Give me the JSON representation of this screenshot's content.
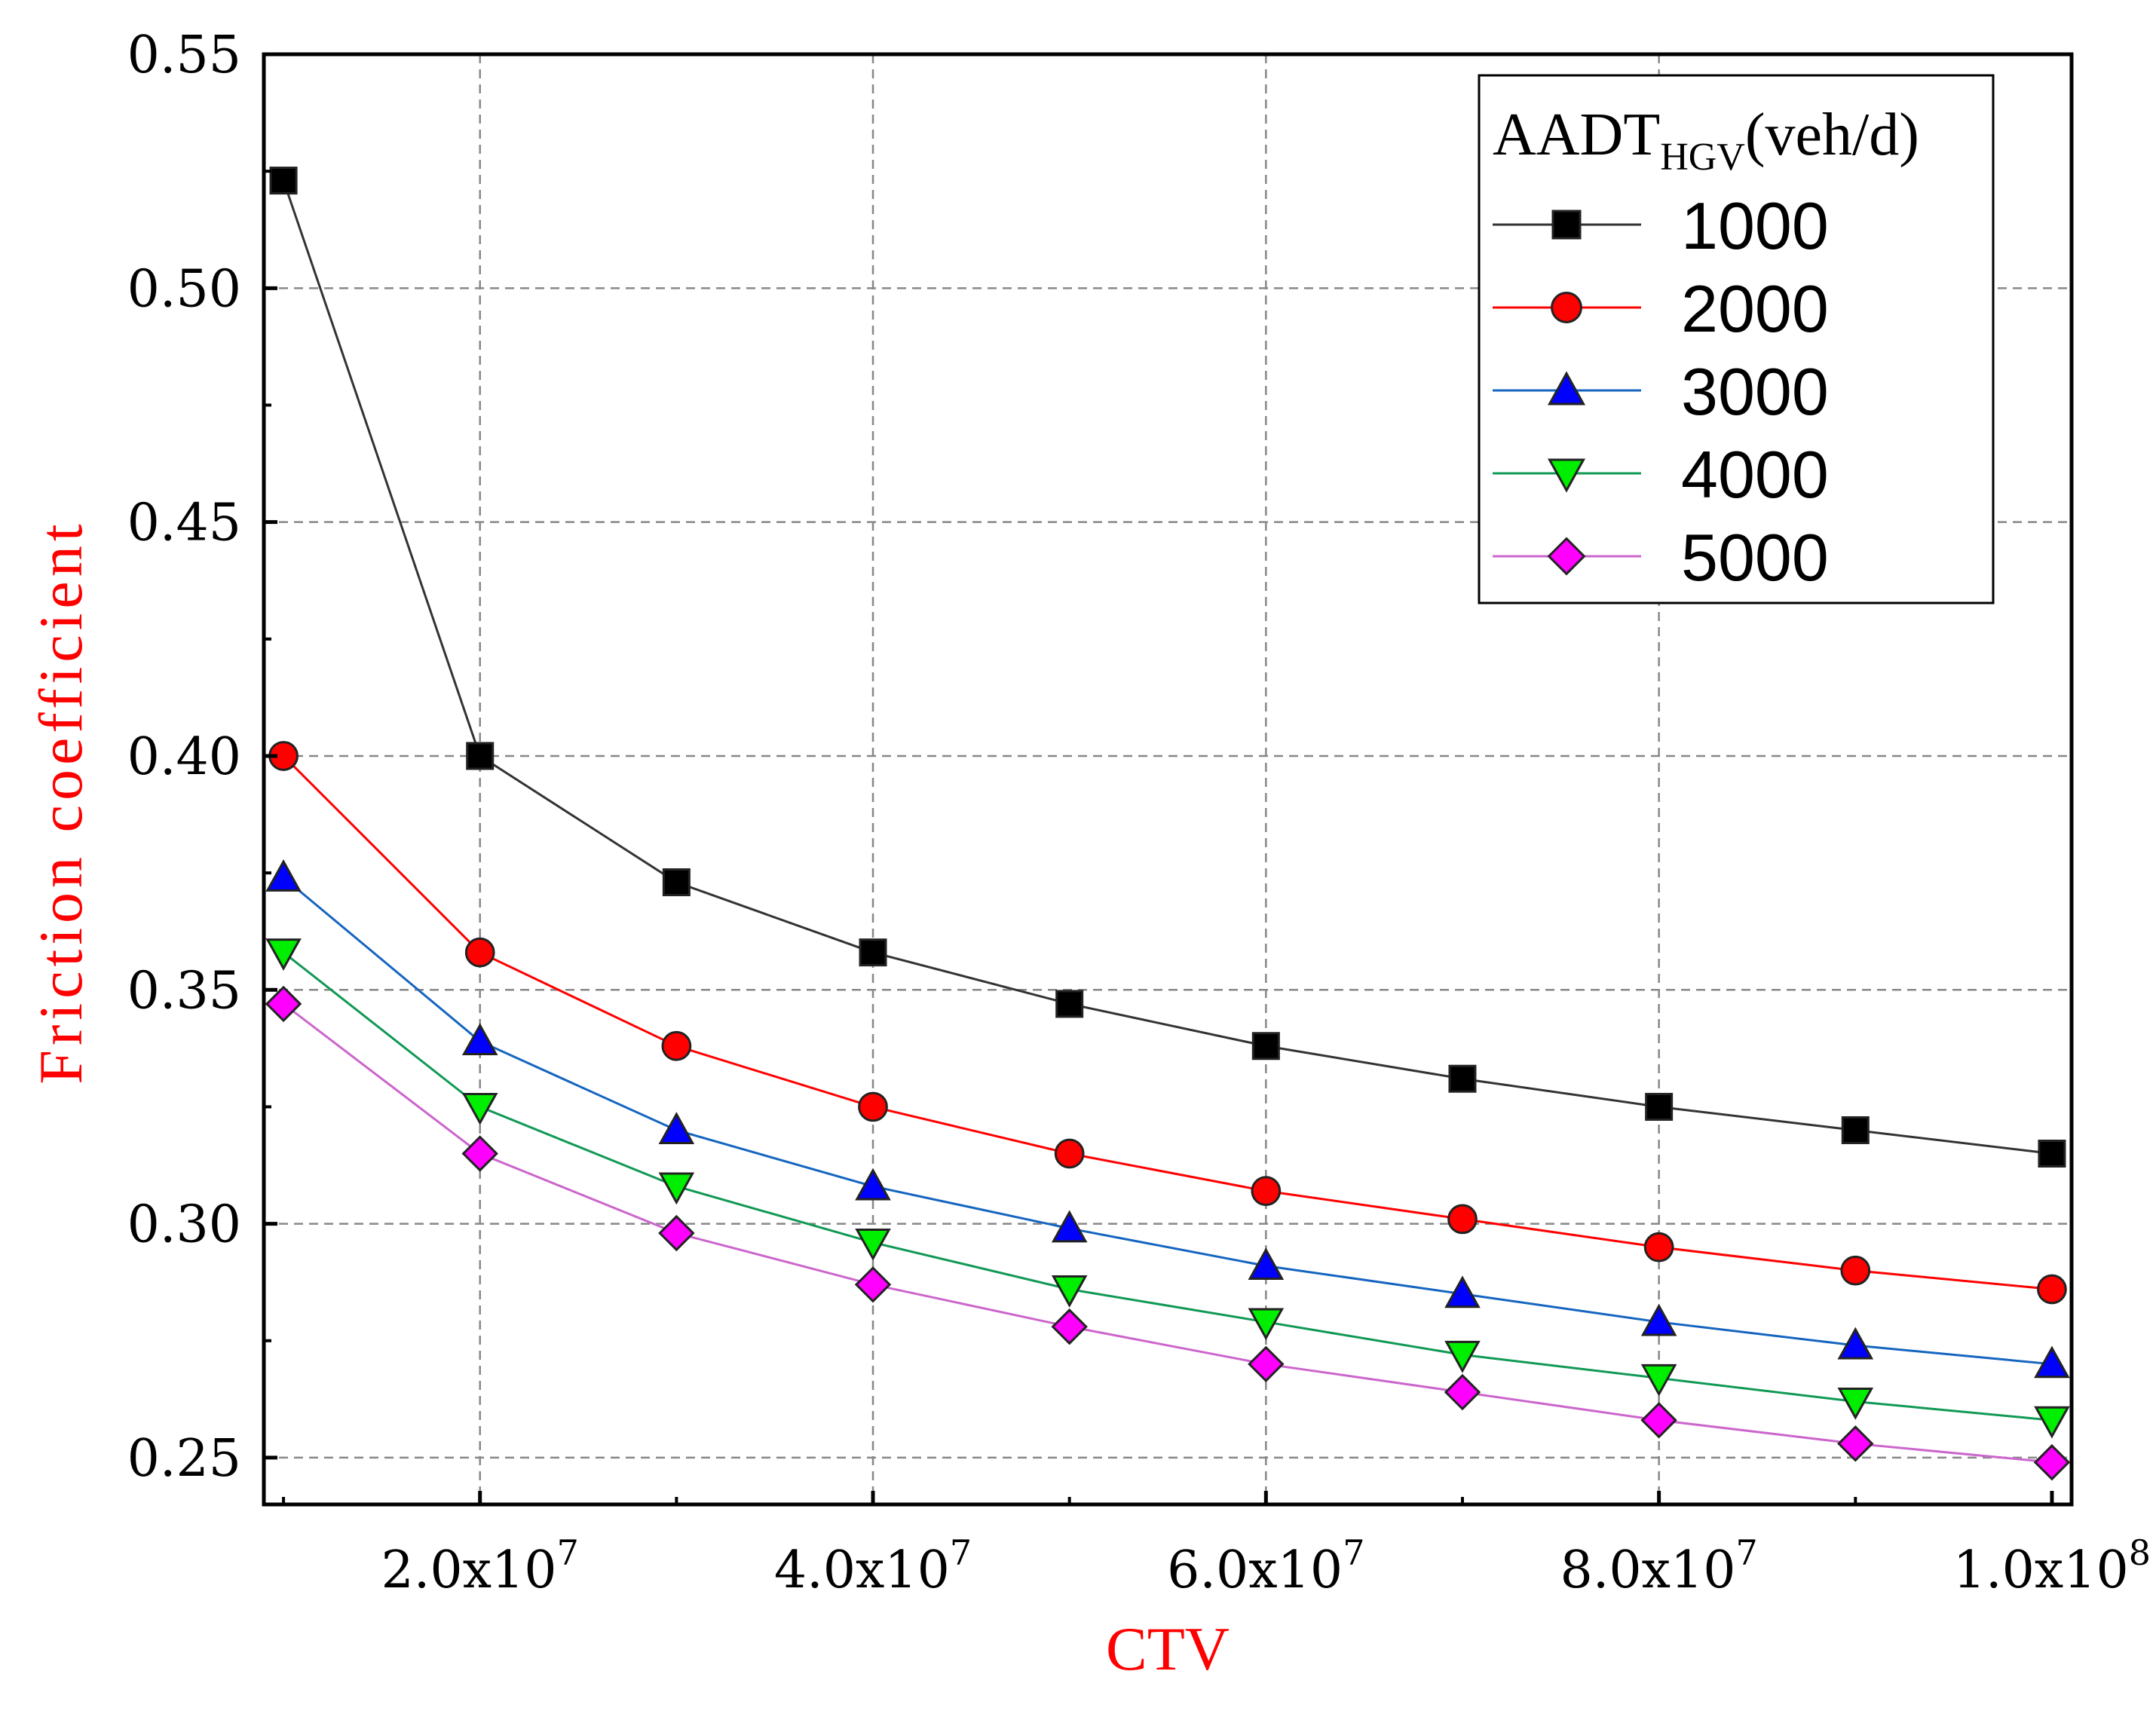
{
  "chart_data": {
    "type": "line",
    "xlabel": "CTV",
    "ylabel": "Friction coefficient",
    "xlim": [
      9000000,
      101000000
    ],
    "ylim": [
      0.24,
      0.55
    ],
    "x_ticks": [
      {
        "value": 20000000,
        "mantissa": "2.0x10",
        "exp": "7"
      },
      {
        "value": 40000000,
        "mantissa": "4.0x10",
        "exp": "7"
      },
      {
        "value": 60000000,
        "mantissa": "6.0x10",
        "exp": "7"
      },
      {
        "value": 80000000,
        "mantissa": "8.0x10",
        "exp": "7"
      },
      {
        "value": 100000000,
        "mantissa": "1.0x10",
        "exp": "8"
      }
    ],
    "y_ticks": [
      {
        "value": 0.25,
        "label": "0.25"
      },
      {
        "value": 0.3,
        "label": "0.30"
      },
      {
        "value": 0.35,
        "label": "0.35"
      },
      {
        "value": 0.4,
        "label": "0.40"
      },
      {
        "value": 0.45,
        "label": "0.45"
      },
      {
        "value": 0.5,
        "label": "0.50"
      },
      {
        "value": 0.55,
        "label": "0.55"
      }
    ],
    "grid": true,
    "legend": {
      "title_main": "AADT",
      "title_sub": "HGV",
      "title_suffix": "(veh/d)",
      "placement": "top-right"
    },
    "x": [
      10000000,
      20000000,
      30000000,
      40000000,
      50000000,
      60000000,
      70000000,
      80000000,
      90000000,
      100000000
    ],
    "series": [
      {
        "name": "1000",
        "color": "#000000",
        "line_color": "#333333",
        "marker": "square",
        "values": [
          0.523,
          0.4,
          0.373,
          0.358,
          0.347,
          0.338,
          0.331,
          0.325,
          0.32,
          0.315
        ]
      },
      {
        "name": "2000",
        "color": "#ff0000",
        "line_color": "#ff0000",
        "marker": "circle",
        "values": [
          0.4,
          0.358,
          0.338,
          0.325,
          0.315,
          0.307,
          0.301,
          0.295,
          0.29,
          0.286
        ]
      },
      {
        "name": "3000",
        "color": "#0000ff",
        "line_color": "#1565c0",
        "marker": "triangle-up",
        "values": [
          0.374,
          0.339,
          0.32,
          0.308,
          0.299,
          0.291,
          0.285,
          0.279,
          0.274,
          0.27
        ]
      },
      {
        "name": "4000",
        "color": "#00ee00",
        "line_color": "#119955",
        "marker": "triangle-down",
        "values": [
          0.358,
          0.325,
          0.308,
          0.296,
          0.286,
          0.279,
          0.272,
          0.267,
          0.262,
          0.258
        ]
      },
      {
        "name": "5000",
        "color": "#ff00ff",
        "line_color": "#cc66cc",
        "marker": "diamond",
        "values": [
          0.347,
          0.315,
          0.298,
          0.287,
          0.278,
          0.27,
          0.264,
          0.258,
          0.253,
          0.249
        ]
      }
    ]
  }
}
